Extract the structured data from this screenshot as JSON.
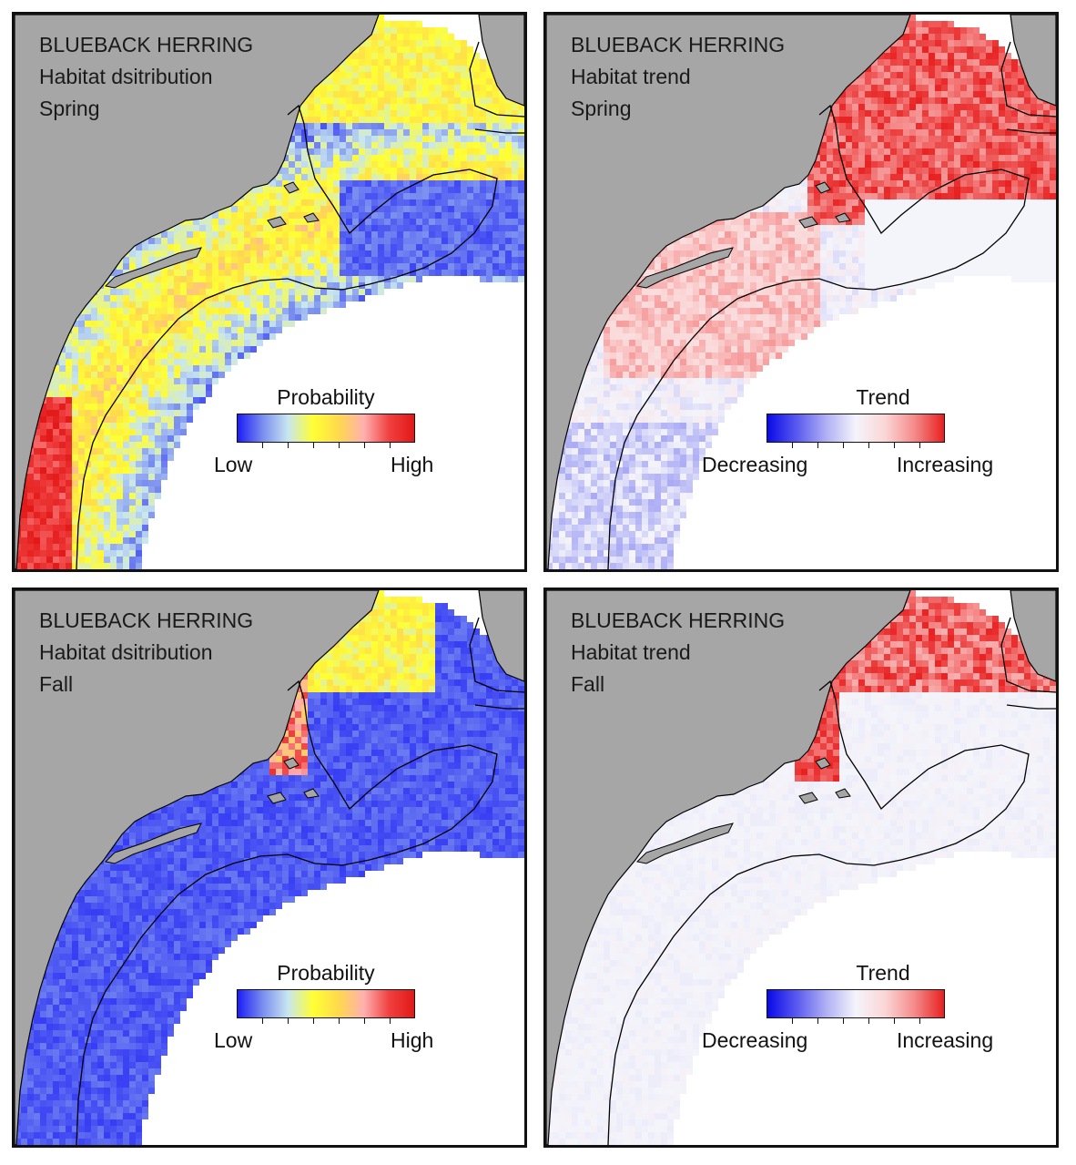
{
  "panels": [
    {
      "id": "spring-distribution",
      "lines": [
        "BLUEBACK HERRING",
        "Habitat dsitribution",
        "Spring"
      ],
      "legend": {
        "title": "Probability",
        "low": "Low",
        "high": "High"
      },
      "colormap": "probability",
      "pattern": "spring-distribution"
    },
    {
      "id": "spring-trend",
      "lines": [
        "BLUEBACK HERRING",
        "Habitat trend",
        "Spring"
      ],
      "legend": {
        "title": "Trend",
        "low": "Decreasing",
        "high": "Increasing"
      },
      "colormap": "trend",
      "pattern": "spring-trend"
    },
    {
      "id": "fall-distribution",
      "lines": [
        "BLUEBACK HERRING",
        "Habitat dsitribution",
        "Fall"
      ],
      "legend": {
        "title": "Probability",
        "low": "Low",
        "high": "High"
      },
      "colormap": "probability",
      "pattern": "fall-distribution"
    },
    {
      "id": "fall-trend",
      "lines": [
        "BLUEBACK HERRING",
        "Habitat trend",
        "Fall"
      ],
      "legend": {
        "title": "Trend",
        "low": "Decreasing",
        "high": "Increasing"
      },
      "colormap": "trend",
      "pattern": "fall-trend"
    }
  ],
  "colors": {
    "land": "#a6a6a6",
    "ocean": "#ffffff",
    "coast_line": "#000000",
    "probability_ramp": [
      "#1d1df5",
      "#7a8ef0",
      "#c8e6f0",
      "#ffff33",
      "#ffd94d",
      "#ffb0b0",
      "#f04040",
      "#e31818"
    ],
    "trend_ramp": [
      "#0a0ae8",
      "#5a5af0",
      "#b0b0f5",
      "#f4f4fb",
      "#fbd6d6",
      "#f58a8a",
      "#e82020"
    ]
  }
}
